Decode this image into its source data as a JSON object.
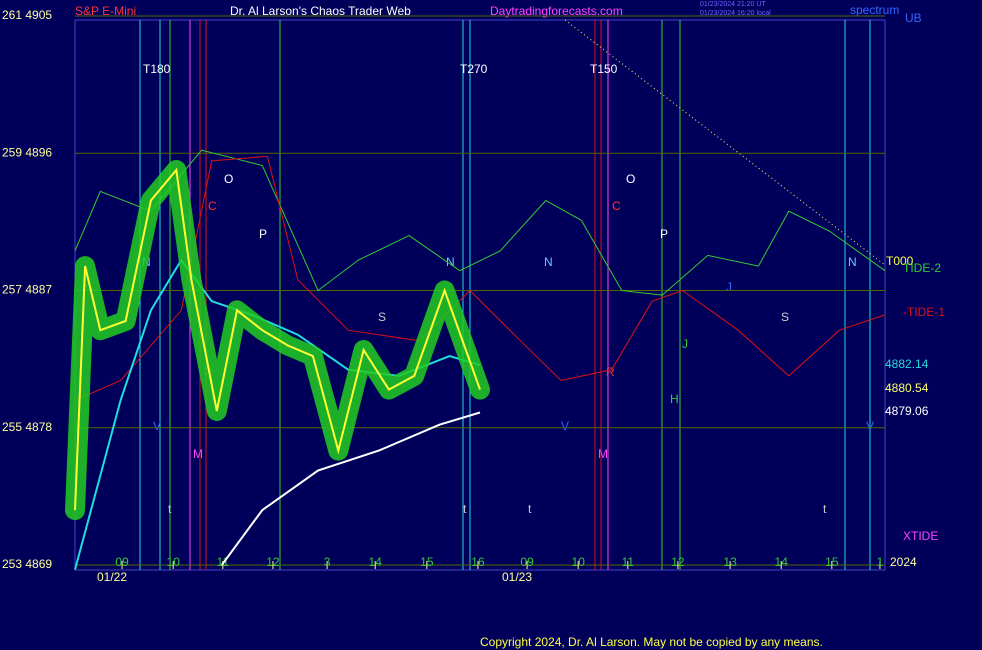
{
  "chart_data": {
    "type": "line",
    "subtitle": "S&P E-Mini",
    "title": "Dr. Al Larson's Chaos Trader Web",
    "site": "Daytradingforecasts.com",
    "stamps": [
      "01/23/2024 21:20 UT",
      "01/23/2024 16:20 local"
    ],
    "spectrum": "spectrum",
    "ub": "UB",
    "copyright": "Copyright 2024, Dr. Al Larson. May not be copied by any means.",
    "dates": [
      "01/22",
      "01/23",
      "2024"
    ],
    "cycle_labels": [
      "T180",
      "T270",
      "T150",
      "T000",
      "XTIDE"
    ],
    "markers": [
      "O",
      "P",
      "N",
      "C",
      "O",
      "P",
      "N",
      "N",
      "N",
      "C",
      "S",
      "S",
      "M",
      "M",
      "H",
      "J",
      "J",
      "R",
      "R",
      "V",
      "V",
      "V",
      "t",
      "t",
      "t",
      "t"
    ],
    "xlim": [
      0,
      16
    ],
    "ylim": [
      4869,
      4905
    ],
    "yticks": [
      {
        "value": 4869,
        "label": "253  4869"
      },
      {
        "value": 4878,
        "label": "255  4878"
      },
      {
        "value": 4887,
        "label": "257  4887"
      },
      {
        "value": 4896,
        "label": "259  4896"
      },
      {
        "value": 4905,
        "label": "261  4905"
      }
    ],
    "xticks": [
      {
        "value": 0.93,
        "label": "09"
      },
      {
        "value": 1.94,
        "label": "10"
      },
      {
        "value": 2.92,
        "label": "11"
      },
      {
        "value": 3.91,
        "label": "12"
      },
      {
        "value": 4.98,
        "label": "3"
      },
      {
        "value": 5.93,
        "label": "14"
      },
      {
        "value": 6.95,
        "label": "15"
      },
      {
        "value": 7.96,
        "label": "16"
      },
      {
        "value": 8.93,
        "label": "09"
      },
      {
        "value": 9.94,
        "label": "10"
      },
      {
        "value": 10.92,
        "label": "11"
      },
      {
        "value": 11.91,
        "label": "12"
      },
      {
        "value": 12.94,
        "label": "13"
      },
      {
        "value": 13.95,
        "label": "14"
      },
      {
        "value": 14.95,
        "label": "15"
      },
      {
        "value": 15.9,
        "label": "1"
      }
    ],
    "grid": true,
    "series": [
      {
        "name": "TIDE-2",
        "color": "#33cc33",
        "x": [
          0,
          0.5,
          1.5,
          2.5,
          3.7,
          4.8,
          5.6,
          6.6,
          7.6,
          8.4,
          9.3,
          10,
          10.8,
          11.6,
          12.5,
          13.5,
          14.1,
          14.9,
          16
        ],
        "values": [
          4889.6,
          4893.5,
          4892.2,
          4896.2,
          4895.2,
          4887,
          4889,
          4890.6,
          4888.3,
          4889.6,
          4892.9,
          4891.6,
          4887,
          4886.7,
          4889.3,
          4888.6,
          4892.2,
          4890.9,
          4888.3
        ]
      },
      {
        "name": "-TIDE-1",
        "color": "#dd1111",
        "x": [
          0,
          0.9,
          2.1,
          2.7,
          3.8,
          4.4,
          5.4,
          6.8,
          7.8,
          8.8,
          9.6,
          10.6,
          11.4,
          12,
          13.1,
          14.1,
          15.1,
          16
        ],
        "values": [
          4879.8,
          4881.1,
          4885.7,
          4895.5,
          4895.8,
          4887.7,
          4884.4,
          4883.7,
          4887,
          4883.7,
          4881.1,
          4881.8,
          4886.3,
          4887,
          4884.4,
          4881.4,
          4884.4,
          4885.4
        ]
      },
      {
        "color": "#22dddd",
        "x": [
          0,
          0.9,
          1.5,
          2.1,
          2.7,
          3.5,
          4.4,
          5.4,
          6.4,
          7.4,
          8
        ],
        "values": [
          4868.7,
          4879.8,
          4885.7,
          4889,
          4886.3,
          4885.4,
          4884.1,
          4881.8,
          4881.4,
          4882.7,
          4882.1
        ]
      },
      {
        "color": "#ffffff",
        "x": [
          2.9,
          3.7,
          4.8,
          6,
          7.2,
          8
        ],
        "values": [
          4869,
          4872.6,
          4875.2,
          4876.5,
          4878.2,
          4879
        ]
      },
      {
        "color": "#ffff33",
        "x": [
          0,
          0.2,
          0.5,
          1,
          1.5,
          2,
          2.3,
          2.8,
          3.2,
          3.7,
          4.2,
          4.7,
          5.2,
          5.7,
          6.2,
          6.7,
          7.3,
          8
        ],
        "values": [
          4872.6,
          4888.6,
          4884.4,
          4885,
          4892.9,
          4894.9,
          4887.7,
          4879.1,
          4885.7,
          4884.4,
          4883.4,
          4882.7,
          4876.5,
          4883.1,
          4880.5,
          4881.4,
          4887,
          4880.5
        ]
      }
    ],
    "last_values": [
      4882.14,
      4880.54,
      4879.06
    ]
  }
}
